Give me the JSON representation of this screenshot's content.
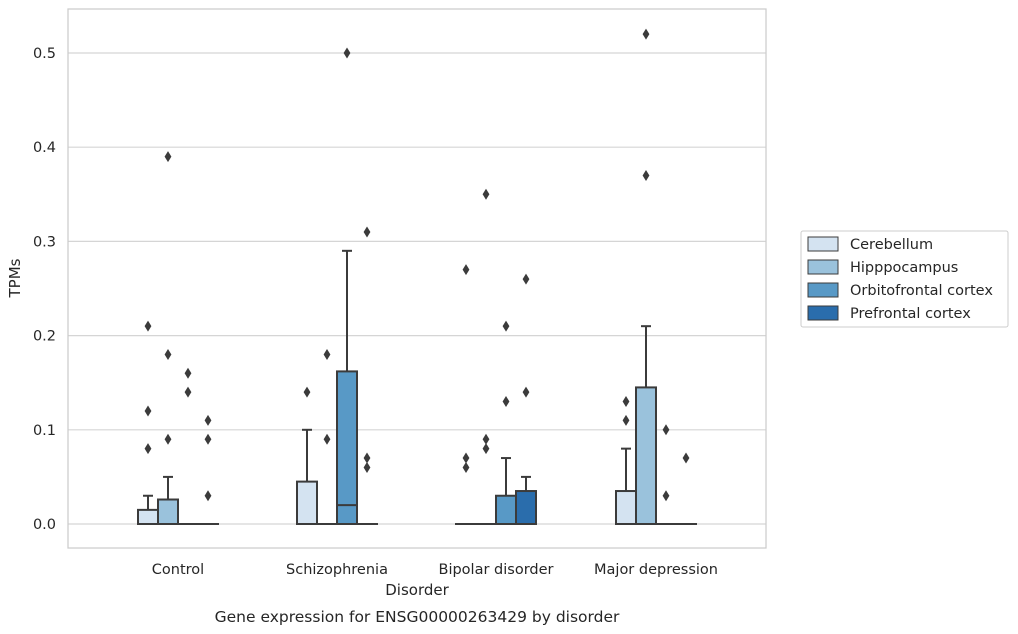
{
  "chart_data": {
    "type": "box",
    "title": "Gene expression for ENSG00000263429 by disorder",
    "xlabel": "Disorder",
    "ylabel": "TPMs",
    "ylim": [
      -0.026,
      0.547
    ],
    "yticks": [
      0.0,
      0.1,
      0.2,
      0.3,
      0.4,
      0.5
    ],
    "ytick_labels": [
      "0.0",
      "0.1",
      "0.2",
      "0.3",
      "0.4",
      "0.5"
    ],
    "grid": "horizontal",
    "legend_position": "right",
    "categories": [
      "Control",
      "Schizophrenia",
      "Bipolar disorder",
      "Major depression"
    ],
    "series": [
      {
        "name": "Cerebellum",
        "color": "#d4e3f1",
        "boxes": [
          {
            "q1": 0.0,
            "median": 0.0,
            "q3": 0.015,
            "whisker_low": 0.0,
            "whisker_high": 0.03,
            "outliers": [
              0.08,
              0.12,
              0.21
            ]
          },
          {
            "q1": 0.0,
            "median": 0.0,
            "q3": 0.045,
            "whisker_low": 0.0,
            "whisker_high": 0.1,
            "outliers": [
              0.14
            ]
          },
          {
            "q1": 0.0,
            "median": 0.0,
            "q3": 0.0,
            "whisker_low": 0.0,
            "whisker_high": 0.0,
            "outliers": [
              0.06,
              0.07,
              0.27
            ]
          },
          {
            "q1": 0.0,
            "median": 0.0,
            "q3": 0.035,
            "whisker_low": 0.0,
            "whisker_high": 0.08,
            "outliers": [
              0.11,
              0.13
            ]
          }
        ]
      },
      {
        "name": "Hipppocampus",
        "color": "#9ac2dc",
        "boxes": [
          {
            "q1": 0.0,
            "median": 0.0,
            "q3": 0.026,
            "whisker_low": 0.0,
            "whisker_high": 0.05,
            "outliers": [
              0.09,
              0.18,
              0.39
            ]
          },
          {
            "q1": 0.0,
            "median": 0.0,
            "q3": 0.0,
            "whisker_low": 0.0,
            "whisker_high": 0.0,
            "outliers": [
              0.09,
              0.18
            ]
          },
          {
            "q1": 0.0,
            "median": 0.0,
            "q3": 0.0,
            "whisker_low": 0.0,
            "whisker_high": 0.0,
            "outliers": [
              0.08,
              0.09,
              0.35
            ]
          },
          {
            "q1": 0.0,
            "median": 0.0,
            "q3": 0.145,
            "whisker_low": 0.0,
            "whisker_high": 0.21,
            "outliers": [
              0.37,
              0.52
            ]
          }
        ]
      },
      {
        "name": "Orbitofrontal cortex",
        "color": "#5899c6",
        "boxes": [
          {
            "q1": 0.0,
            "median": 0.0,
            "q3": 0.0,
            "whisker_low": 0.0,
            "whisker_high": 0.0,
            "outliers": [
              0.14,
              0.16
            ]
          },
          {
            "q1": 0.0,
            "median": 0.02,
            "q3": 0.162,
            "whisker_low": 0.0,
            "whisker_high": 0.29,
            "outliers": [
              0.5
            ]
          },
          {
            "q1": 0.0,
            "median": 0.0,
            "q3": 0.03,
            "whisker_low": 0.0,
            "whisker_high": 0.07,
            "outliers": [
              0.13,
              0.21
            ]
          },
          {
            "q1": 0.0,
            "median": 0.0,
            "q3": 0.0,
            "whisker_low": 0.0,
            "whisker_high": 0.0,
            "outliers": [
              0.03,
              0.1
            ]
          }
        ]
      },
      {
        "name": "Prefrontal cortex",
        "color": "#2a6dac",
        "boxes": [
          {
            "q1": 0.0,
            "median": 0.0,
            "q3": 0.0,
            "whisker_low": 0.0,
            "whisker_high": 0.0,
            "outliers": [
              0.03,
              0.09,
              0.11
            ]
          },
          {
            "q1": 0.0,
            "median": 0.0,
            "q3": 0.0,
            "whisker_low": 0.0,
            "whisker_high": 0.0,
            "outliers": [
              0.06,
              0.07,
              0.31
            ]
          },
          {
            "q1": 0.0,
            "median": 0.0,
            "q3": 0.035,
            "whisker_low": 0.0,
            "whisker_high": 0.05,
            "outliers": [
              0.14,
              0.26
            ]
          },
          {
            "q1": 0.0,
            "median": 0.0,
            "q3": 0.0,
            "whisker_low": 0.0,
            "whisker_high": 0.0,
            "outliers": [
              0.07
            ]
          }
        ]
      }
    ]
  }
}
